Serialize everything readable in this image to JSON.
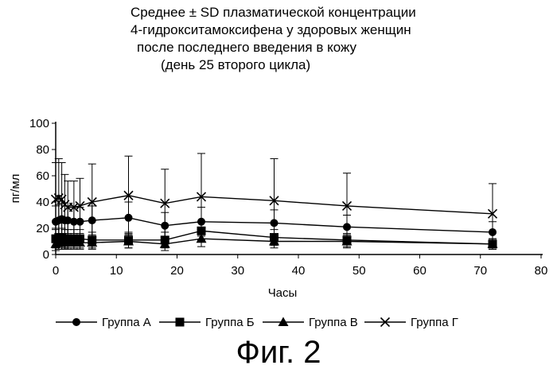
{
  "figure_caption": "Фиг. 2",
  "chart_data": {
    "type": "line",
    "title_lines": [
      "Среднее ± SD плазматической концентрации",
      "4-гидрокситамоксифена у здоровых женщин",
      "после последнего введения в кожу",
      "(день 25 второго цикла)"
    ],
    "xlabel": "Часы",
    "ylabel": "пг/мл",
    "xlim": [
      0,
      80
    ],
    "ylim": [
      0,
      100
    ],
    "xticks": [
      0,
      10,
      20,
      30,
      40,
      50,
      60,
      70,
      80
    ],
    "yticks": [
      0,
      20,
      40,
      60,
      80,
      100
    ],
    "grid": false,
    "legend_position": "bottom",
    "x": [
      0,
      0.5,
      1,
      1.5,
      2,
      3,
      4,
      6,
      12,
      18,
      24,
      36,
      48,
      72
    ],
    "series": [
      {
        "name": "Группа А",
        "marker": "circle",
        "values": [
          25,
          26,
          27,
          26,
          26,
          25,
          25,
          26,
          28,
          22,
          25,
          24,
          21,
          17
        ],
        "sd": [
          12,
          12,
          12,
          11,
          11,
          11,
          11,
          11,
          12,
          10,
          11,
          10,
          9,
          8
        ]
      },
      {
        "name": "Группа Б",
        "marker": "square",
        "values": [
          12,
          13,
          13,
          12,
          12,
          12,
          12,
          11,
          11,
          11,
          18,
          13,
          11,
          8
        ],
        "sd": [
          7,
          7,
          7,
          7,
          7,
          7,
          7,
          6,
          6,
          6,
          7,
          6,
          5,
          4
        ]
      },
      {
        "name": "Группа В",
        "marker": "triangle",
        "values": [
          8,
          9,
          9,
          9,
          9,
          9,
          9,
          9,
          10,
          8,
          12,
          10,
          10,
          8
        ],
        "sd": [
          5,
          5,
          5,
          5,
          5,
          5,
          5,
          5,
          5,
          5,
          6,
          5,
          5,
          4
        ]
      },
      {
        "name": "Группа Г",
        "marker": "x",
        "values": [
          42,
          43,
          42,
          38,
          36,
          36,
          37,
          40,
          45,
          39,
          44,
          41,
          37,
          31
        ],
        "sd": [
          28,
          30,
          28,
          23,
          20,
          20,
          21,
          29,
          30,
          26,
          33,
          32,
          25,
          23
        ]
      }
    ]
  }
}
